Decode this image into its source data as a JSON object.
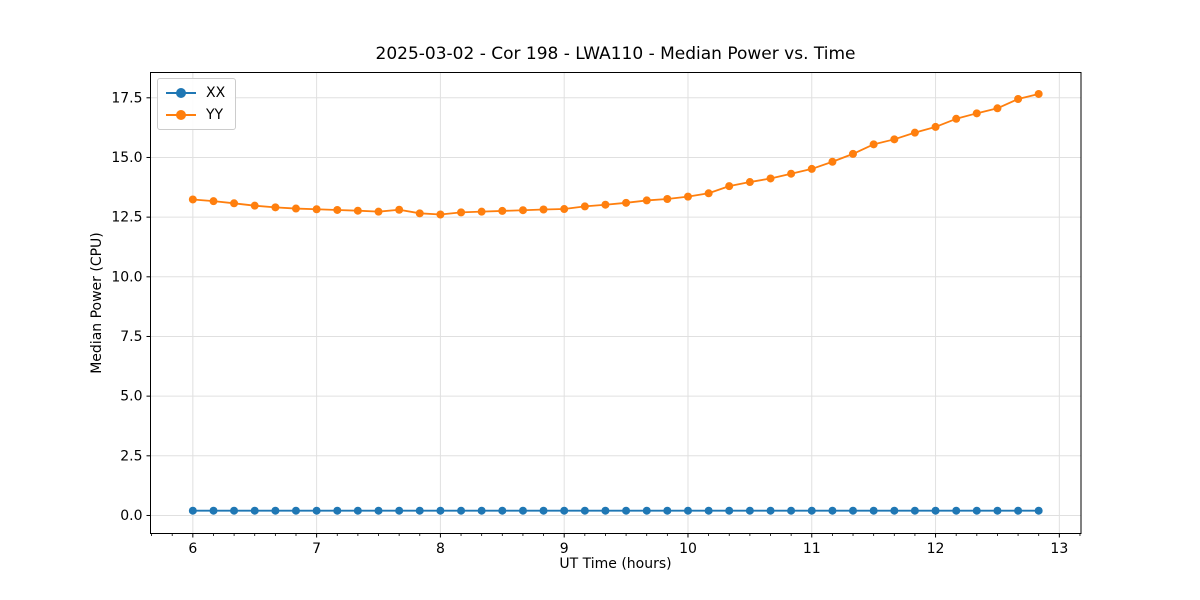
{
  "figure_background": "#ffffff",
  "chart_data": {
    "type": "line",
    "title": "2025-03-02 - Cor 198 - LWA110 - Median Power vs. Time",
    "xlabel": "UT Time (hours)",
    "ylabel": "Median Power (CPU)",
    "xlim": [
      5.658,
      13.175
    ],
    "ylim": [
      -0.755,
      18.56
    ],
    "xticks": [
      6,
      7,
      8,
      9,
      10,
      11,
      12,
      13
    ],
    "yticks": [
      0.0,
      2.5,
      5.0,
      7.5,
      10.0,
      12.5,
      15.0,
      17.5
    ],
    "x_minor_tick_interval_hours": 0.1667,
    "grid": "major-both-axes",
    "grid_color": "#e0e0e0",
    "legend_position": "upper-left",
    "marker": "circle",
    "x": [
      6.0,
      6.167,
      6.333,
      6.5,
      6.667,
      6.833,
      7.0,
      7.167,
      7.333,
      7.5,
      7.667,
      7.833,
      8.0,
      8.167,
      8.333,
      8.5,
      8.667,
      8.833,
      9.0,
      9.167,
      9.333,
      9.5,
      9.667,
      9.833,
      10.0,
      10.167,
      10.333,
      10.5,
      10.667,
      10.833,
      11.0,
      11.167,
      11.333,
      11.5,
      11.667,
      11.833,
      12.0,
      12.167,
      12.333,
      12.5,
      12.667,
      12.833
    ],
    "series": [
      {
        "name": "XX",
        "color": "#1f77b4",
        "values": [
          0.2,
          0.2,
          0.2,
          0.2,
          0.2,
          0.2,
          0.2,
          0.2,
          0.2,
          0.2,
          0.2,
          0.2,
          0.2,
          0.2,
          0.2,
          0.2,
          0.2,
          0.2,
          0.2,
          0.2,
          0.2,
          0.2,
          0.2,
          0.2,
          0.2,
          0.2,
          0.2,
          0.2,
          0.2,
          0.2,
          0.2,
          0.2,
          0.2,
          0.2,
          0.2,
          0.2,
          0.2,
          0.2,
          0.2,
          0.2,
          0.2,
          0.2
        ]
      },
      {
        "name": "YY",
        "color": "#ff7f0e",
        "values": [
          13.24,
          13.17,
          13.08,
          12.98,
          12.91,
          12.86,
          12.83,
          12.8,
          12.77,
          12.73,
          12.81,
          12.66,
          12.61,
          12.7,
          12.73,
          12.76,
          12.79,
          12.82,
          12.84,
          12.95,
          13.02,
          13.1,
          13.2,
          13.26,
          13.36,
          13.5,
          13.8,
          13.97,
          14.12,
          14.32,
          14.52,
          14.82,
          15.15,
          15.55,
          15.76,
          16.04,
          16.28,
          16.62,
          16.85,
          17.06,
          17.45,
          17.66
        ]
      }
    ]
  }
}
